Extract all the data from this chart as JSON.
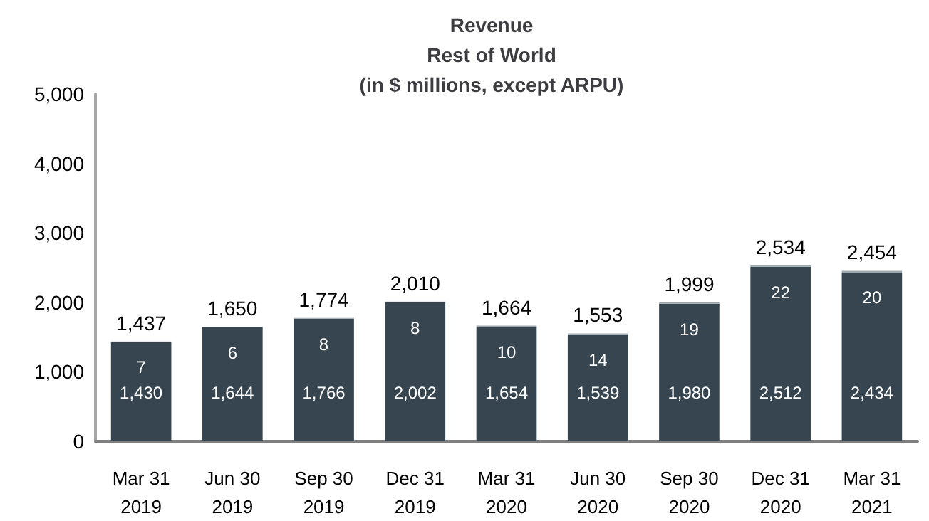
{
  "chart_data": {
    "type": "bar",
    "title": "Revenue\nRest of World\n(in $ millions, except ARPU)",
    "stacked": true,
    "grid": false,
    "categories": [
      "Mar 31\n2019",
      "Jun 30\n2019",
      "Sep 30\n2019",
      "Dec 31\n2019",
      "Mar 31\n2020",
      "Jun 30\n2020",
      "Sep 30\n2020",
      "Dec 31\n2020",
      "Mar 31\n2021"
    ],
    "series": [
      {
        "color": "#36454f",
        "values": [
          1430,
          1644,
          1766,
          2002,
          1654,
          1539,
          1980,
          2512,
          2434
        ],
        "value_labels": [
          "1,430",
          "1,644",
          "1,766",
          "2,002",
          "1,654",
          "1,539",
          "1,980",
          "2,512",
          "2,434"
        ]
      },
      {
        "color": "#9eaab2",
        "values": [
          7,
          6,
          8,
          8,
          10,
          14,
          19,
          22,
          20
        ],
        "value_labels": [
          "7",
          "6",
          "8",
          "8",
          "10",
          "14",
          "19",
          "22",
          "20"
        ]
      }
    ],
    "totals": [
      "1,437",
      "1,650",
      "1,774",
      "2,010",
      "1,664",
      "1,553",
      "1,999",
      "2,534",
      "2,454"
    ],
    "ylim": [
      0,
      5000
    ],
    "yticks": [
      0,
      {
        "value": 1000,
        "label": "1,000"
      },
      {
        "value": 2000,
        "label": "2,000"
      },
      {
        "value": 3000,
        "label": "3,000"
      },
      {
        "value": 4000,
        "label": "4,000"
      },
      {
        "value": 5000,
        "label": "5,000"
      }
    ]
  }
}
